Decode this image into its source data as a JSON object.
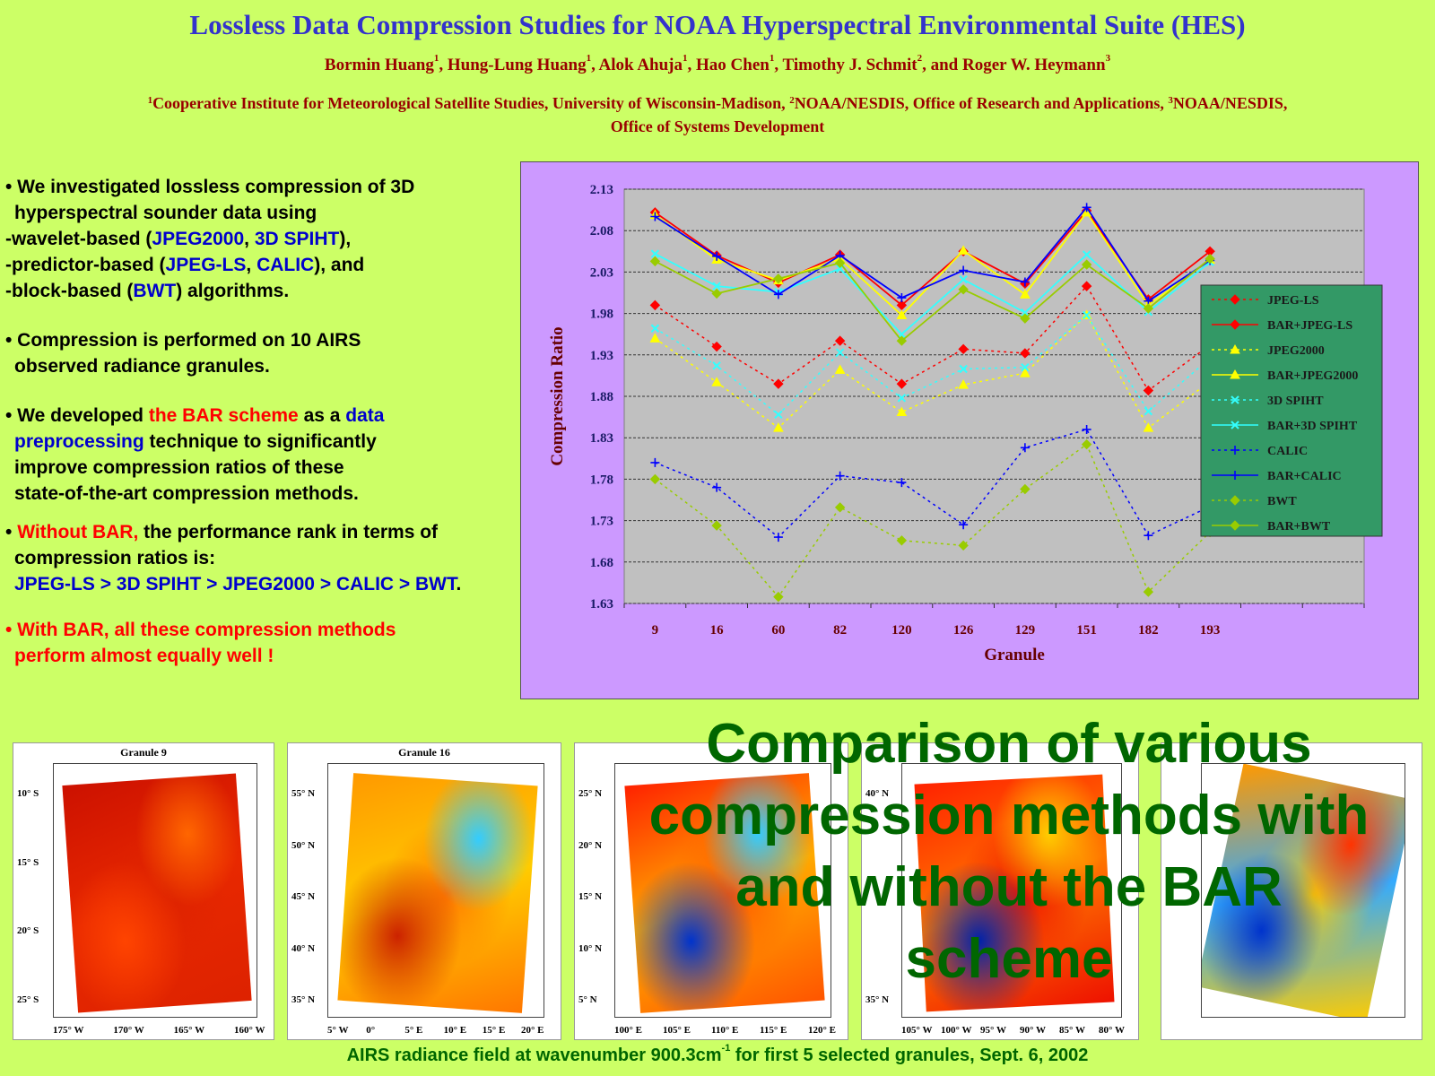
{
  "header": {
    "title": "Lossless Data Compression Studies for NOAA Hyperspectral Environmental Suite (HES)",
    "authors": [
      {
        "name": "Bormin Huang",
        "sup": "1"
      },
      {
        "name": "Hung-Lung Huang",
        "sup": "1"
      },
      {
        "name": "Alok Ahuja",
        "sup": "1"
      },
      {
        "name": "Hao Chen",
        "sup": "1"
      },
      {
        "name": "Timothy J. Schmit",
        "sup": "2"
      },
      {
        "name": "Roger W. Heymann",
        "sup": "3"
      }
    ],
    "affiliations": [
      {
        "sup": "1",
        "text": "Cooperative Institute for Meteorological Satellite Studies, University of Wisconsin-Madison, "
      },
      {
        "sup": "2",
        "text": "NOAA/NESDIS, Office of Research and Applications, "
      },
      {
        "sup": "3",
        "text": "NOAA/NESDIS, Office of Systems Development"
      }
    ]
  },
  "bullets": {
    "b1_l1": "• We investigated lossless compression of 3D",
    "b1_l2": "hyperspectral sounder data using",
    "b1_l3a": "-wavelet-based (",
    "b1_l3b": "JPEG2000",
    "b1_l3c": ", ",
    "b1_l3d": "3D SPIHT",
    "b1_l3e": "),",
    "b1_l4a": "-predictor-based (",
    "b1_l4b": "JPEG-LS",
    "b1_l4c": ", ",
    "b1_l4d": "CALIC",
    "b1_l4e": "), and",
    "b1_l5a": "-block-based (",
    "b1_l5b": "BWT",
    "b1_l5c": ") algorithms.",
    "b2_l1": "• Compression is performed on 10 AIRS",
    "b2_l2": "observed radiance granules.",
    "b3_a": "• We developed ",
    "b3_b": "the BAR scheme",
    "b3_c": " as a ",
    "b3_d": "data",
    "b3_e": "preprocessing",
    "b3_f": " technique to significantly",
    "b3_g": "improve compression ratios of these",
    "b3_h": "state-of-the-art compression methods.",
    "b4_a": "• ",
    "b4_b": "Without BAR,",
    "b4_c": "  the performance rank in terms of",
    "b4_d": "compression ratios is:",
    "b4_e": "JPEG-LS  > 3D SPIHT > JPEG2000 > CALIC > BWT",
    "b4_f": ".",
    "b5_l1": "• With BAR, all these compression methods",
    "b5_l2": "perform almost equally well !"
  },
  "overlay_text": "Comparison of various compression methods with and without the BAR scheme",
  "caption": {
    "pre": "AIRS radiance field at wavenumber 900.3cm",
    "sup": "-1",
    "post": " for first 5 selected granules, Sept. 6, 2002"
  },
  "maps": [
    {
      "title": "Granule 9",
      "yticks": [
        "10° S",
        "15° S",
        "20° S",
        "25° S"
      ],
      "xticks": [
        "175° W",
        "170° W",
        "165° W",
        "160° W"
      ]
    },
    {
      "title": "Granule 16",
      "yticks": [
        "55° N",
        "50° N",
        "45° N",
        "40° N",
        "35° N"
      ],
      "xticks": [
        "5° W",
        "0°",
        "5° E",
        "10° E",
        "15° E",
        "20° E"
      ]
    },
    {
      "title": "",
      "yticks": [
        "25° N",
        "20° N",
        "15° N",
        "10° N",
        "5° N"
      ],
      "xticks": [
        "100° E",
        "105° E",
        "110° E",
        "115° E",
        "120° E"
      ]
    },
    {
      "title": "",
      "yticks": [
        "40° N",
        "35° N"
      ],
      "xticks": [
        "105° W",
        "100° W",
        "95° W",
        "90° W",
        "85° W",
        "80° W"
      ]
    },
    {
      "title": "",
      "yticks": [],
      "xticks": []
    }
  ],
  "colors": {
    "background": "#ccff66",
    "chart_panel": "#cc99ff",
    "plot_area": "#c0c0c0",
    "legend_bg": "#339966",
    "title": "#3333cc",
    "authors": "#990000",
    "overlay": "#006600"
  },
  "chart_data": {
    "type": "line",
    "xlabel": "Granule",
    "ylabel": "Compression Ratio",
    "categories": [
      "9",
      "16",
      "60",
      "82",
      "120",
      "126",
      "129",
      "151",
      "182",
      "193"
    ],
    "ylim": [
      1.63,
      2.13
    ],
    "yticks": [
      "1.63",
      "1.68",
      "1.73",
      "1.78",
      "1.83",
      "1.88",
      "1.93",
      "1.98",
      "2.03",
      "2.08",
      "2.13"
    ],
    "grid": true,
    "legend_position": "right",
    "series": [
      {
        "name": "JPEG-LS",
        "color": "#ff0000",
        "dash": true,
        "marker": "diamond",
        "values": [
          1.99,
          1.94,
          1.895,
          1.947,
          1.895,
          1.937,
          1.932,
          2.013,
          1.887,
          1.942
        ]
      },
      {
        "name": "BAR+JPEG-LS",
        "color": "#ff0000",
        "dash": false,
        "marker": "diamond",
        "values": [
          2.102,
          2.05,
          2.017,
          2.051,
          1.99,
          2.055,
          2.016,
          2.104,
          1.997,
          2.055
        ]
      },
      {
        "name": "JPEG2000",
        "color": "#ffff00",
        "dash": true,
        "marker": "triangle",
        "values": [
          1.95,
          1.897,
          1.842,
          1.912,
          1.861,
          1.894,
          1.908,
          1.978,
          1.842,
          1.898
        ]
      },
      {
        "name": "BAR+JPEG2000",
        "color": "#ffff00",
        "dash": false,
        "marker": "triangle",
        "values": [
          2.099,
          2.045,
          2.02,
          2.046,
          1.978,
          2.056,
          2.003,
          2.102,
          1.99,
          2.045
        ]
      },
      {
        "name": "3D SPIHT",
        "color": "#33ffff",
        "dash": true,
        "marker": "x",
        "values": [
          1.962,
          1.917,
          1.858,
          1.933,
          1.878,
          1.913,
          1.915,
          1.978,
          1.862,
          1.926
        ]
      },
      {
        "name": "BAR+3D SPIHT",
        "color": "#33ffff",
        "dash": false,
        "marker": "x",
        "values": [
          2.052,
          2.013,
          2.006,
          2.034,
          1.955,
          2.021,
          1.981,
          2.051,
          1.982,
          2.042
        ]
      },
      {
        "name": "CALIC",
        "color": "#0000ff",
        "dash": true,
        "marker": "plus",
        "values": [
          1.8,
          1.77,
          1.71,
          1.784,
          1.776,
          1.725,
          1.818,
          1.84,
          1.712,
          1.747
        ]
      },
      {
        "name": "BAR+CALIC",
        "color": "#0000ff",
        "dash": false,
        "marker": "plus",
        "values": [
          2.097,
          2.049,
          2.003,
          2.05,
          1.999,
          2.032,
          2.018,
          2.108,
          1.995,
          2.044
        ]
      },
      {
        "name": "BWT",
        "color": "#99cc00",
        "dash": true,
        "marker": "diamond",
        "values": [
          1.78,
          1.724,
          1.638,
          1.746,
          1.706,
          1.7,
          1.768,
          1.822,
          1.644,
          1.716
        ]
      },
      {
        "name": "BAR+BWT",
        "color": "#99cc00",
        "dash": false,
        "marker": "diamond",
        "values": [
          2.043,
          2.004,
          2.022,
          2.041,
          1.947,
          2.009,
          1.974,
          2.039,
          1.986,
          2.046
        ]
      }
    ]
  }
}
